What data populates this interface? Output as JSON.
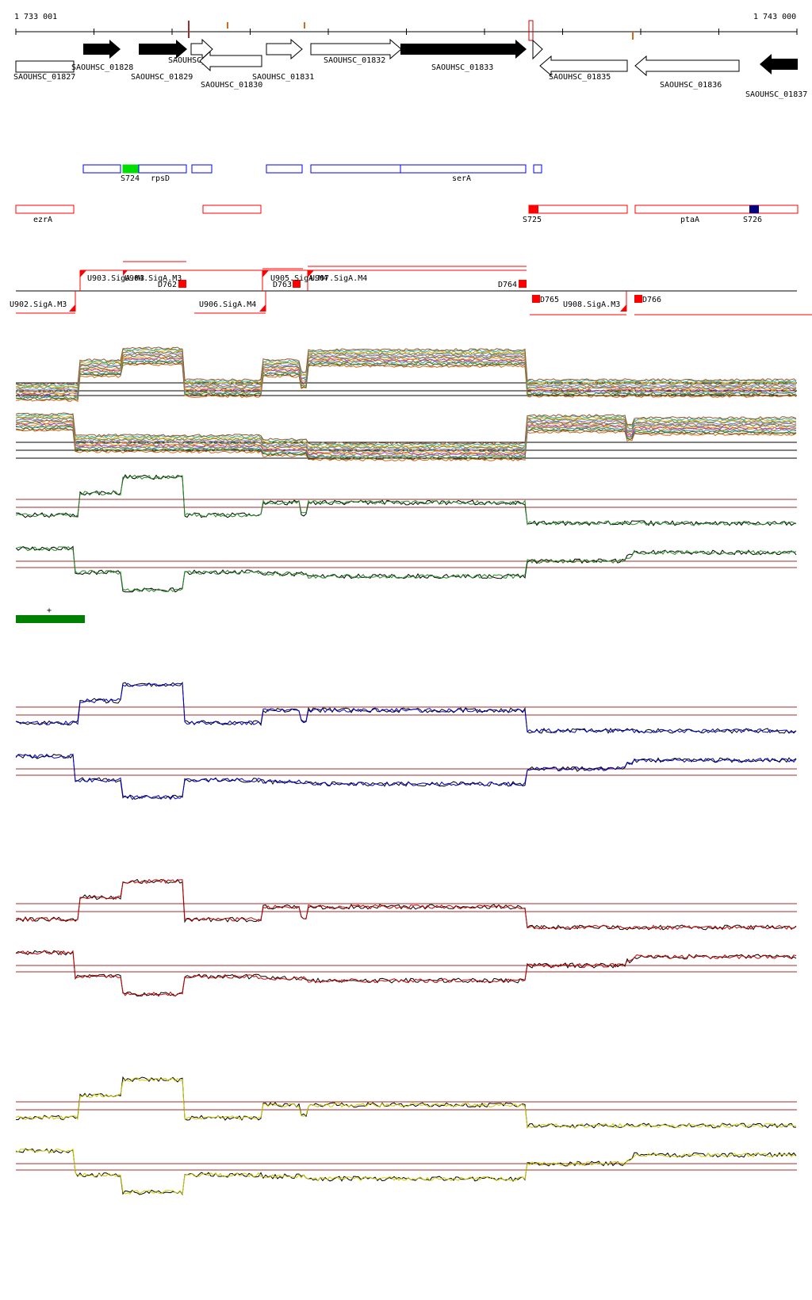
{
  "coords": {
    "start": "1 733 001",
    "end": "1 743 000"
  },
  "genes": [
    {
      "label": "SAOUHSC_01827",
      "fill": "#ffffff"
    },
    {
      "label": "SAOUHSC_01828",
      "fill": "#000000"
    },
    {
      "label": "SAOUHSC_01829",
      "fill": "#000000"
    },
    {
      "label": "SAOUHSC_A01754",
      "fill": "#ffffff"
    },
    {
      "label": "SAOUHSC_01830",
      "fill": "#ffffff"
    },
    {
      "label": "SAOUHSC_01831",
      "fill": "#ffffff"
    },
    {
      "label": "SAOUHSC_01832",
      "fill": "#ffffff"
    },
    {
      "label": "SAOUHSC_01833",
      "fill": "#000000"
    },
    {
      "label": "SAOUHSC_01835",
      "fill": "#ffffff"
    },
    {
      "label": "SAOUHSC_01836",
      "fill": "#ffffff"
    },
    {
      "label": "SAOUHSC_01837",
      "fill": "#000000"
    }
  ],
  "blue_features": [
    "S724",
    "rpsD",
    "serA"
  ],
  "red_features": [
    "ezrA",
    "S725",
    "ptaA",
    "S726"
  ],
  "promoters": [
    "U902.SigA.M3",
    "U903.SigA.M3",
    "U904.SigA.M3",
    "U905.SigA.M4",
    "U906.SigA.M4",
    "U907.SigA.M4",
    "U908.SigA.M3"
  ],
  "terminators": [
    "D762",
    "D763",
    "D764",
    "D765",
    "D766"
  ],
  "strand_marker": "+",
  "colors": {
    "gene_outline": "#000000",
    "blue_feature": "#0000ff",
    "green_feature": "#00dd00",
    "navy_feature": "#000080",
    "red_feature": "#ff0000",
    "reference_line": "#a52a2a",
    "green_track": "#228b22",
    "blue_track": "#0000cd",
    "red_track": "#cc0000",
    "yellow_track": "#cccc00",
    "strand_bar": "#008000"
  }
}
